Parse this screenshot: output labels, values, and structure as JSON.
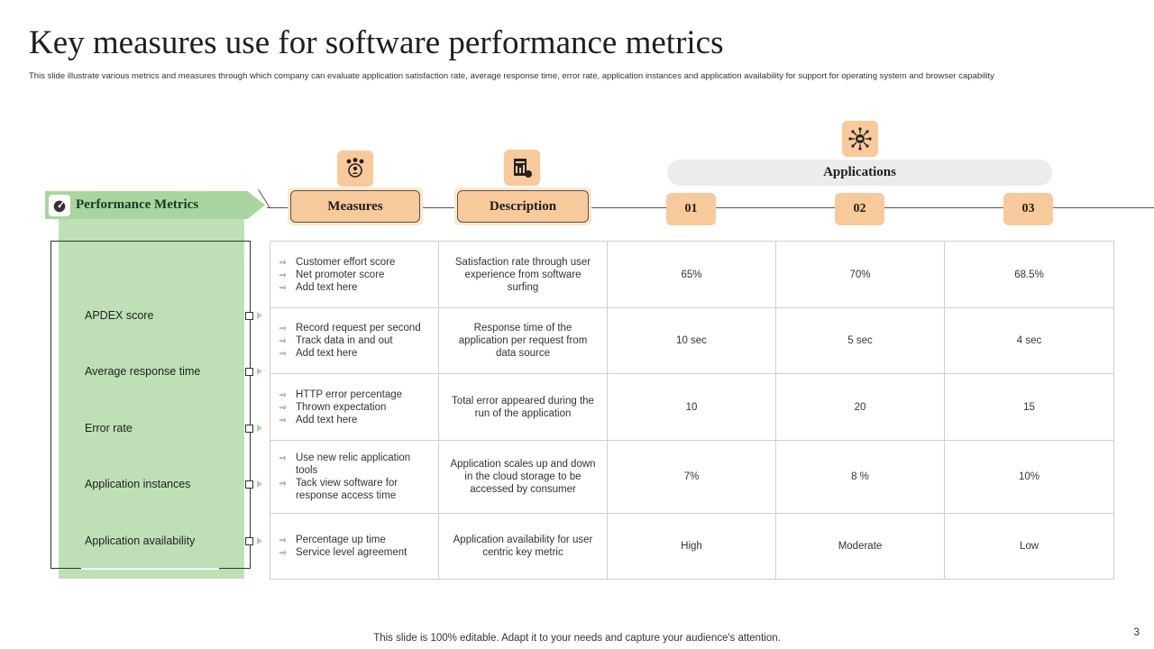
{
  "title": "Key measures use for software performance metrics",
  "subtitle": "This slide illustrate various metrics and measures through which company can evaluate application satisfaction rate, average response time, error rate, application instances and application  availability   for support for operating system and browser capability",
  "performance_metrics": {
    "label": "Performance Metrics",
    "items": [
      "APDEX score",
      "Average  response time",
      "Error  rate",
      "Application instances",
      "Application availability"
    ]
  },
  "headers": {
    "measures": "Measures",
    "description": "Description",
    "applications": "Applications",
    "app_numbers": [
      "01",
      "02",
      "03"
    ]
  },
  "rows": [
    {
      "measures": [
        "Customer effort score",
        "Net promoter score",
        "Add text here"
      ],
      "description": "Satisfaction rate through user experience from software surfing",
      "values": [
        "65%",
        "70%",
        "68.5%"
      ]
    },
    {
      "measures": [
        "Record request per second",
        "Track data in and out",
        "Add text here"
      ],
      "description": "Response time of the application per request from data source",
      "values": [
        "10 sec",
        "5 sec",
        "4 sec"
      ]
    },
    {
      "measures": [
        "HTTP error percentage",
        "Thrown expectation",
        "Add text here"
      ],
      "description": "Total error appeared during the run of the application",
      "values": [
        "10",
        "20",
        "15"
      ]
    },
    {
      "measures": [
        "Use new relic application tools",
        "Tack view software for response access time"
      ],
      "description": "Application scales up and down in the cloud storage to be accessed by consumer",
      "values": [
        "7%",
        "8 %",
        "10%"
      ]
    },
    {
      "measures": [
        "Percentage up time",
        "Service level agreement"
      ],
      "description": "Application availability for user centric  key metric",
      "values": [
        "High",
        "Moderate",
        "Low"
      ]
    }
  ],
  "bullet_glyph": "⇨",
  "colors": {
    "accent_orange": "#f8c99a",
    "accent_green": "#a9d5a0",
    "panel_green": "#bfe0b7"
  },
  "footer": "This slide is 100% editable. Adapt it to your needs and capture your audience's attention.",
  "page_number": "3"
}
